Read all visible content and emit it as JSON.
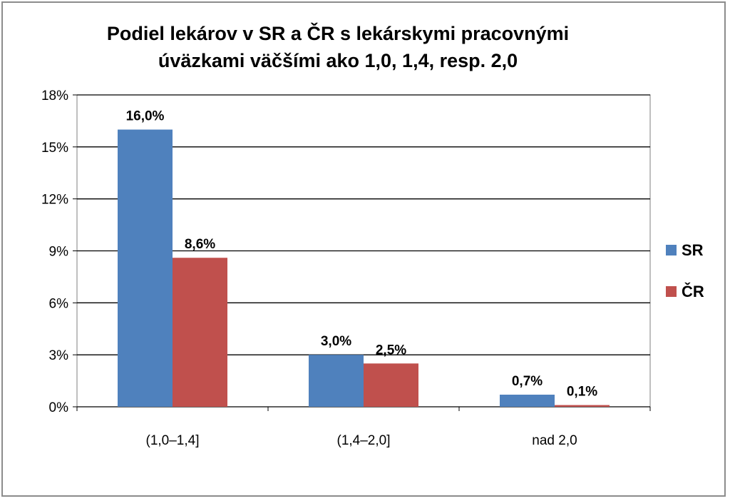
{
  "chart_data": {
    "type": "bar",
    "title_lines": [
      "Podiel lekárov  v SR a ČR s lekárskymi  pracovnými",
      "úväzkami väčšími  ako 1,0,  1,4,  resp.  2,0"
    ],
    "categories": [
      "(1,0–1,4]",
      "(1,4–2,0]",
      "nad 2,0"
    ],
    "series": [
      {
        "name": "SR",
        "color": "#4f81bd",
        "values": [
          16.0,
          3.0,
          0.7
        ],
        "labels": [
          "16,0%",
          "3,0%",
          "0,7%"
        ]
      },
      {
        "name": "ČR",
        "color": "#c0504d",
        "values": [
          8.6,
          2.5,
          0.1
        ],
        "labels": [
          "8,6%",
          "2,5%",
          "0,1%"
        ]
      }
    ],
    "ylim": [
      0,
      18
    ],
    "yticks": [
      0,
      3,
      6,
      9,
      12,
      15,
      18
    ],
    "ytick_labels": [
      "0%",
      "3%",
      "6%",
      "9%",
      "12%",
      "15%",
      "18%"
    ],
    "grid": true,
    "legend_position": "right"
  }
}
